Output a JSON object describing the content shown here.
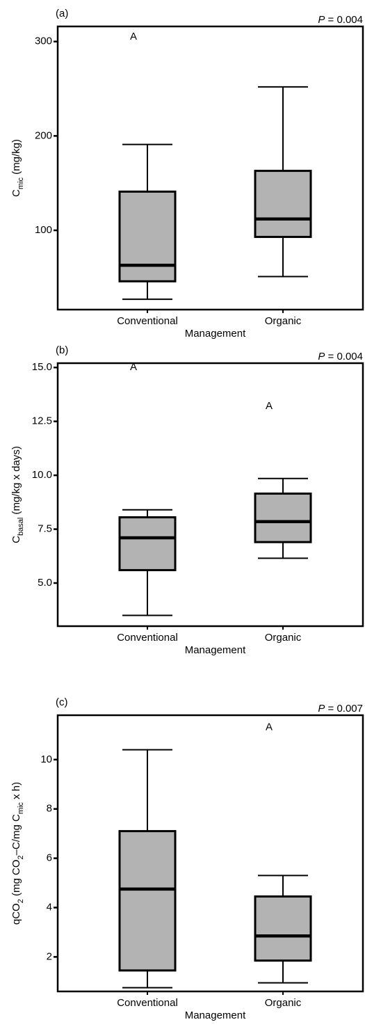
{
  "chart_data": [
    {
      "type": "box",
      "panel": "(a)",
      "p_label": [
        {
          "text": "P",
          "italic": true
        },
        {
          "text": " = 0.004"
        }
      ],
      "ylabel": [
        {
          "text": "C"
        },
        {
          "text": "mic",
          "sub": true
        },
        {
          "text": " (mg/kg)"
        }
      ],
      "xlabel": "Management",
      "categories": [
        "Conventional",
        "Organic"
      ],
      "color": "#b3b3b3",
      "ylim": [
        16,
        316
      ],
      "yticks": [
        100,
        200,
        300
      ],
      "stats": [
        {
          "low": 27,
          "q1": 46,
          "median": 63,
          "q3": 141,
          "high": 191,
          "outliers": [
            {
              "value": 305,
              "marker": "A"
            }
          ]
        },
        {
          "low": 51,
          "q1": 93,
          "median": 112,
          "q3": 163,
          "high": 252,
          "outliers": []
        }
      ]
    },
    {
      "type": "box",
      "panel": "(b)",
      "p_label": [
        {
          "text": "P",
          "italic": true
        },
        {
          "text": " = 0.004"
        }
      ],
      "ylabel": [
        {
          "text": "C"
        },
        {
          "text": "basal",
          "sub": true
        },
        {
          "text": " (mg/kg x days)"
        }
      ],
      "xlabel": "Management",
      "categories": [
        "Conventional",
        "Organic"
      ],
      "color": "#b3b3b3",
      "ylim": [
        3.0,
        15.2
      ],
      "yticks": [
        {
          "value": 5,
          "label": "5.0"
        },
        7.5,
        {
          "value": 10,
          "label": "10.0"
        },
        12.5,
        {
          "value": 15,
          "label": "15.0"
        }
      ],
      "stats": [
        {
          "low": 3.5,
          "q1": 5.6,
          "median": 7.1,
          "q3": 8.05,
          "high": 8.4,
          "outliers": [
            {
              "value": 15.0,
              "marker": "A"
            }
          ]
        },
        {
          "low": 6.15,
          "q1": 6.9,
          "median": 7.85,
          "q3": 9.15,
          "high": 9.85,
          "outliers": [
            {
              "value": 13.2,
              "marker": "A"
            }
          ]
        }
      ]
    },
    {
      "type": "box",
      "panel": "(c)",
      "p_label": [
        {
          "text": "P",
          "italic": true
        },
        {
          "text": " = 0.007"
        }
      ],
      "ylabel": [
        {
          "text": "qCO"
        },
        {
          "text": "2",
          "sub": true
        },
        {
          "text": " (mg CO"
        },
        {
          "text": "2",
          "sub": true
        },
        {
          "text": "–C/mg C"
        },
        {
          "text": "mic",
          "sub": true
        },
        {
          "text": " x h)"
        }
      ],
      "xlabel": "Management",
      "categories": [
        "Conventional",
        "Organic"
      ],
      "color": "#b3b3b3",
      "ylim": [
        0.6,
        11.8
      ],
      "yticks": [
        2,
        4,
        6,
        8,
        10
      ],
      "stats": [
        {
          "low": 0.75,
          "q1": 1.45,
          "median": 4.75,
          "q3": 7.1,
          "high": 10.4,
          "outliers": []
        },
        {
          "low": 0.95,
          "q1": 1.85,
          "median": 2.85,
          "q3": 4.45,
          "high": 5.3,
          "outliers": [
            {
              "value": 11.3,
              "marker": "A"
            }
          ]
        }
      ]
    }
  ]
}
